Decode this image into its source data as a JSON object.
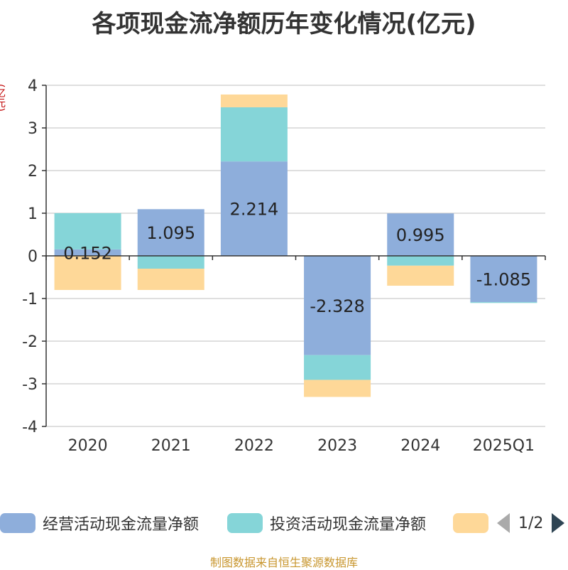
{
  "title": "各项现金流净额历年变化情况(亿元)",
  "unit_label": "(亿元)",
  "source": "制图数据来自恒生聚源数据库",
  "legend": {
    "items": [
      {
        "label": "经营活动现金流量净额",
        "color": "#8eaedb"
      },
      {
        "label": "投资活动现金流量净额",
        "color": "#85d5d8"
      },
      {
        "label": "",
        "color": "#fed898"
      }
    ],
    "page": "1/2"
  },
  "chart_data": {
    "type": "bar",
    "stacked": true,
    "categories": [
      "2020",
      "2021",
      "2022",
      "2023",
      "2024",
      "2025Q1"
    ],
    "ylim": [
      -4,
      4
    ],
    "yticks": [
      -4,
      -3,
      -2,
      -1,
      0,
      1,
      2,
      3,
      4
    ],
    "series": [
      {
        "name": "经营活动现金流量净额",
        "color": "#8eaedb",
        "values": [
          0.152,
          1.095,
          2.214,
          -2.328,
          0.995,
          -1.085
        ],
        "labels": [
          "0.152",
          "1.095",
          "2.214",
          "-2.328",
          "0.995",
          "-1.085"
        ]
      },
      {
        "name": "投资活动现金流量净额",
        "color": "#85d5d8",
        "values": [
          0.85,
          -0.3,
          1.27,
          -0.58,
          -0.23,
          -0.02
        ]
      },
      {
        "name": "",
        "color": "#fed898",
        "values": [
          -0.8,
          -0.5,
          0.3,
          -0.4,
          -0.47,
          0
        ]
      }
    ]
  }
}
